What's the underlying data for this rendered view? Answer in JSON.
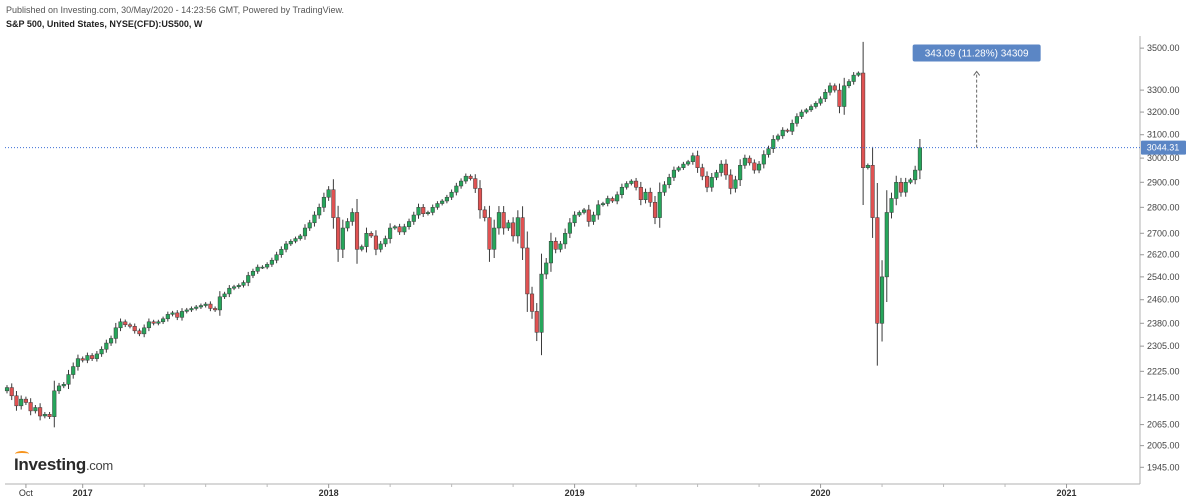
{
  "header": {
    "published": "Published on Investing.com, 30/May/2020 - 14:23:56 GMT, Powered by TradingView.",
    "symbol": "S&P 500, United States, NYSE(CFD):US500, W"
  },
  "logo": {
    "text": "Investing",
    "suffix": ".com"
  },
  "chart_data": {
    "type": "candlestick",
    "title": "S&P 500, United States, NYSE(CFD):US500, W",
    "timeframe": "W",
    "y_axis_ticks": [
      3500,
      3300,
      3200,
      3100,
      3000,
      2900,
      2800,
      2700,
      2620,
      2540,
      2460,
      2380,
      2305,
      2225,
      2145,
      2065,
      2005,
      1945
    ],
    "ylim": [
      1900,
      3560
    ],
    "x_axis_ticks": [
      {
        "label": "Oct",
        "week": 4,
        "bold": false
      },
      {
        "label": "2017",
        "week": 16,
        "bold": true
      },
      {
        "label": "2018",
        "week": 68,
        "bold": true
      },
      {
        "label": "2019",
        "week": 120,
        "bold": true
      },
      {
        "label": "2020",
        "week": 172,
        "bold": true
      },
      {
        "label": "2021",
        "week": 224,
        "bold": true
      }
    ],
    "minor_x_ticks": [
      29,
      42,
      55,
      81,
      94,
      107,
      133,
      146,
      159,
      185,
      198,
      211
    ],
    "last_price": 3044.31,
    "last_price_label": "3044.31",
    "measure_annotation": {
      "text": "343.09 (11.28%) 34309",
      "from_price": 3044.31,
      "to_price": 3387.4,
      "week": 205
    },
    "colors": {
      "up": "#26a65b",
      "down": "#e05252",
      "price_line": "#3b6fd6",
      "label_bg": "#5b86c5"
    },
    "weekly_closes": [
      2175,
      2150,
      2120,
      2140,
      2130,
      2105,
      2115,
      2090,
      2095,
      2088,
      2165,
      2180,
      2185,
      2215,
      2240,
      2265,
      2260,
      2275,
      2265,
      2280,
      2295,
      2315,
      2330,
      2365,
      2385,
      2375,
      2370,
      2355,
      2345,
      2365,
      2385,
      2380,
      2385,
      2395,
      2410,
      2415,
      2400,
      2420,
      2425,
      2430,
      2435,
      2440,
      2445,
      2430,
      2425,
      2470,
      2480,
      2500,
      2505,
      2510,
      2520,
      2545,
      2560,
      2575,
      2575,
      2585,
      2600,
      2620,
      2640,
      2660,
      2670,
      2680,
      2690,
      2720,
      2740,
      2770,
      2800,
      2840,
      2870,
      2760,
      2640,
      2720,
      2745,
      2780,
      2640,
      2650,
      2700,
      2690,
      2640,
      2660,
      2680,
      2720,
      2725,
      2705,
      2725,
      2745,
      2770,
      2800,
      2775,
      2780,
      2800,
      2815,
      2825,
      2840,
      2860,
      2885,
      2905,
      2925,
      2915,
      2875,
      2790,
      2760,
      2640,
      2720,
      2780,
      2720,
      2740,
      2690,
      2760,
      2645,
      2480,
      2420,
      2350,
      2550,
      2590,
      2670,
      2640,
      2660,
      2700,
      2740,
      2770,
      2780,
      2790,
      2745,
      2770,
      2810,
      2815,
      2835,
      2825,
      2850,
      2880,
      2895,
      2905,
      2880,
      2830,
      2860,
      2820,
      2760,
      2860,
      2890,
      2920,
      2950,
      2960,
      2975,
      2985,
      3010,
      2960,
      2925,
      2880,
      2920,
      2940,
      2975,
      2930,
      2875,
      2910,
      2970,
      3000,
      2980,
      2950,
      2975,
      3015,
      3040,
      3080,
      3095,
      3120,
      3115,
      3150,
      3180,
      3200,
      3210,
      3225,
      3240,
      3260,
      3290,
      3320,
      3300,
      3225,
      3320,
      3340,
      3370,
      3380,
      2960,
      2970,
      2760,
      2380,
      2540,
      2780,
      2835,
      2900,
      2860,
      2900,
      2910,
      2950,
      3044.31
    ]
  }
}
